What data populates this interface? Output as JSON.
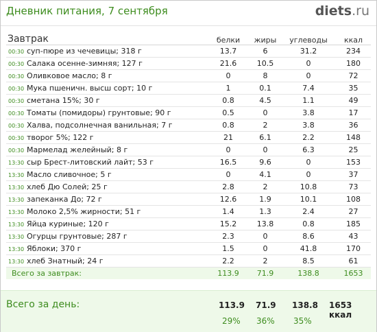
{
  "header": {
    "title": "Дневник питания, 7 сентября",
    "logo_main": "diets",
    "logo_tld": ".ru"
  },
  "columns": {
    "meal": "Завтрак",
    "protein": "белки",
    "fat": "жиры",
    "carbs": "углеводы",
    "kcal": "ккал"
  },
  "rows": [
    {
      "time": "00:30",
      "name": "суп-пюре из чечевицы; 318 г",
      "protein": "13.7",
      "fat": "6",
      "carbs": "31.2",
      "kcal": "234"
    },
    {
      "time": "00:30",
      "name": "Салака осенне-зимняя; 127 г",
      "protein": "21.6",
      "fat": "10.5",
      "carbs": "0",
      "kcal": "180"
    },
    {
      "time": "00:30",
      "name": "Оливковое масло; 8 г",
      "protein": "0",
      "fat": "8",
      "carbs": "0",
      "kcal": "72"
    },
    {
      "time": "00:30",
      "name": "Мука пшеничн. высш сорт; 10 г",
      "protein": "1",
      "fat": "0.1",
      "carbs": "7.4",
      "kcal": "35"
    },
    {
      "time": "00:30",
      "name": "сметана 15%; 30 г",
      "protein": "0.8",
      "fat": "4.5",
      "carbs": "1.1",
      "kcal": "49"
    },
    {
      "time": "00:30",
      "name": "Томаты (помидоры) грунтовые; 90 г",
      "protein": "0.5",
      "fat": "0",
      "carbs": "3.8",
      "kcal": "17"
    },
    {
      "time": "00:30",
      "name": "Халва, подсолнечная ванильная; 7 г",
      "protein": "0.8",
      "fat": "2",
      "carbs": "3.8",
      "kcal": "36"
    },
    {
      "time": "00:30",
      "name": "творог 5%; 122 г",
      "protein": "21",
      "fat": "6.1",
      "carbs": "2.2",
      "kcal": "148"
    },
    {
      "time": "00:30",
      "name": "Мармелад желейный; 8 г",
      "protein": "0",
      "fat": "0",
      "carbs": "6.3",
      "kcal": "25"
    },
    {
      "time": "13:30",
      "name": "сыр Брест-литовский лайт; 53 г",
      "protein": "16.5",
      "fat": "9.6",
      "carbs": "0",
      "kcal": "153"
    },
    {
      "time": "13:30",
      "name": "Масло сливочное; 5 г",
      "protein": "0",
      "fat": "4.1",
      "carbs": "0",
      "kcal": "37"
    },
    {
      "time": "13:30",
      "name": "хлеб Дю Солей; 25 г",
      "protein": "2.8",
      "fat": "2",
      "carbs": "10.8",
      "kcal": "73"
    },
    {
      "time": "13:30",
      "name": "запеканка До; 72 г",
      "protein": "12.6",
      "fat": "1.9",
      "carbs": "10.1",
      "kcal": "108"
    },
    {
      "time": "13:30",
      "name": "Молоко 2,5% жирности; 51 г",
      "protein": "1.4",
      "fat": "1.3",
      "carbs": "2.4",
      "kcal": "27"
    },
    {
      "time": "13:30",
      "name": "Яйца куриные; 120 г",
      "protein": "15.2",
      "fat": "13.8",
      "carbs": "0.8",
      "kcal": "185"
    },
    {
      "time": "13:30",
      "name": "Огурцы грунтовые; 287 г",
      "protein": "2.3",
      "fat": "0",
      "carbs": "8.6",
      "kcal": "43"
    },
    {
      "time": "13:30",
      "name": "Яблоки; 370 г",
      "protein": "1.5",
      "fat": "0",
      "carbs": "41.8",
      "kcal": "170"
    },
    {
      "time": "13:30",
      "name": "хлеб Знатный; 24 г",
      "protein": "2.2",
      "fat": "2",
      "carbs": "8.5",
      "kcal": "61"
    }
  ],
  "meal_total": {
    "label": "Всего за завтрак:",
    "protein": "113.9",
    "fat": "71.9",
    "carbs": "138.8",
    "kcal": "1653"
  },
  "day_total": {
    "label": "Всего за день:",
    "protein": "113.9",
    "fat": "71.9",
    "carbs": "138.8",
    "kcal": "1653 ккал",
    "protein_pct": "29%",
    "fat_pct": "36%",
    "carbs_pct": "35%"
  },
  "colors": {
    "accent": "#3d8c1e",
    "total_bg": "#eef9e9",
    "border": "#c8c8c8"
  }
}
